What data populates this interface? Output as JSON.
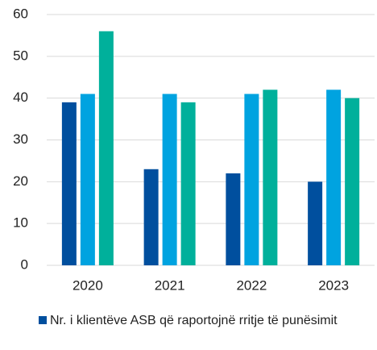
{
  "chart_data": {
    "type": "bar",
    "categories": [
      "2020",
      "2021",
      "2022",
      "2023"
    ],
    "series": [
      {
        "name": "Nr. i klientëve ASB që raportojnë rritje të punësimit",
        "color": "#004f9e",
        "values": [
          39,
          23,
          22,
          20
        ]
      },
      {
        "color": "#00a3e0",
        "values": [
          41,
          41,
          41,
          42
        ]
      },
      {
        "color": "#00b09b",
        "values": [
          56,
          39,
          42,
          40
        ]
      }
    ],
    "ylim": [
      0,
      60
    ],
    "yticks": [
      0,
      10,
      20,
      30,
      40,
      50,
      60
    ],
    "grid": true,
    "legend": "bottom"
  }
}
